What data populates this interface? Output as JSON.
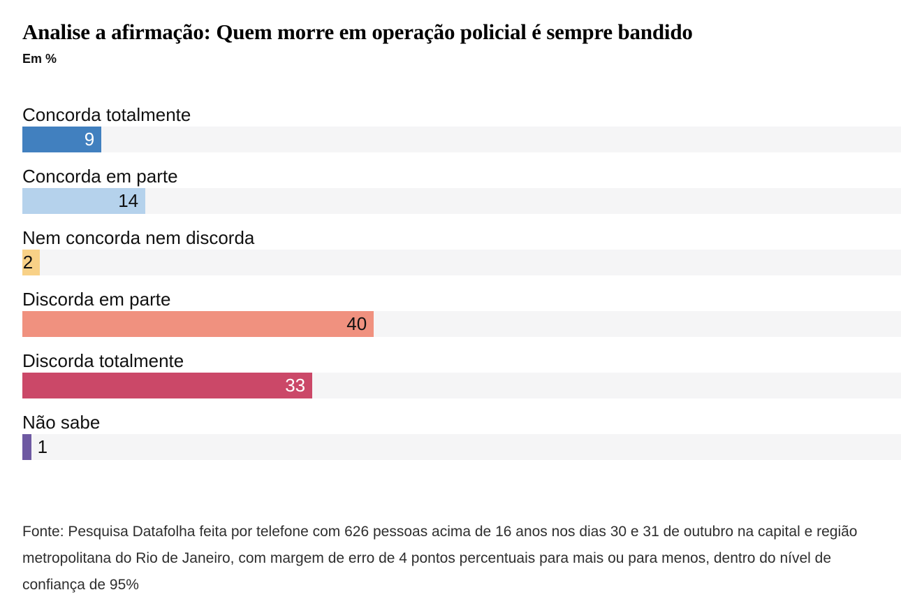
{
  "header": {
    "title": "Analise a afirmação: Quem morre em operação policial é sempre bandido",
    "subtitle": "Em %"
  },
  "chart_data": {
    "type": "bar",
    "orientation": "horizontal",
    "unit": "%",
    "title": "Analise a afirmação: Quem morre em operação policial é sempre bandido",
    "subtitle": "Em %",
    "xlim": [
      0,
      100
    ],
    "grid": false,
    "legend": false,
    "track_color": "#f5f5f6",
    "categories": [
      "Concorda totalmente",
      "Concorda em parte",
      "Nem concorda nem discorda",
      "Discorda em parte",
      "Discorda totalmente",
      "Não sabe"
    ],
    "values": [
      9,
      14,
      2,
      40,
      33,
      1
    ],
    "bar_colors": [
      "#4180bf",
      "#b5d2ec",
      "#f8d187",
      "#f0917f",
      "#cb4868",
      "#6e59a2"
    ],
    "value_label_colors": [
      "#ffffff",
      "#111111",
      "#111111",
      "#111111",
      "#ffffff",
      "#111111"
    ],
    "value_label_outside": [
      false,
      false,
      false,
      false,
      false,
      true
    ]
  },
  "footer": {
    "source": "Fonte: Pesquisa Datafolha feita por telefone com 626 pessoas acima de 16 anos nos dias 30 e 31 de outubro na capital e região metropolitana do Rio de Janeiro, com margem de erro de 4 pontos percentuais para mais ou para menos, dentro do nível de confiança de 95%"
  }
}
